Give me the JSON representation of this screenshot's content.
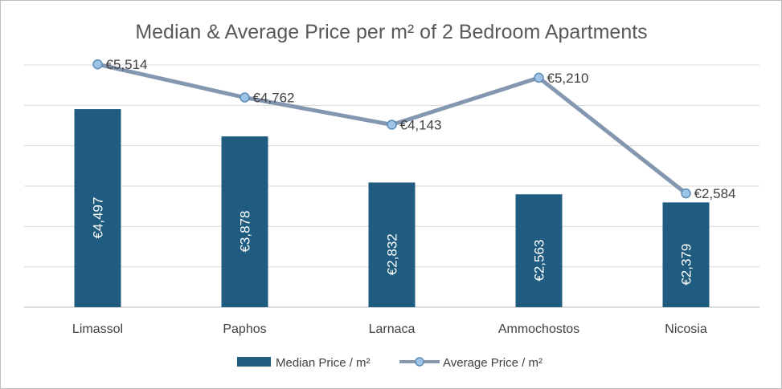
{
  "chart_data": {
    "type": "bar",
    "title": "Median & Average Price per m² of 2 Bedroom Apartments",
    "categories": [
      "Limassol",
      "Paphos",
      "Larnaca",
      "Ammochostos",
      "Nicosia"
    ],
    "ylim": [
      0,
      5500
    ],
    "grid": true,
    "legend_position": "bottom",
    "series": [
      {
        "name": "Median Price / m²",
        "kind": "bar",
        "color": "#1f5c80",
        "values": [
          4497,
          3878,
          2832,
          2563,
          2379
        ],
        "labels": [
          "€4,497",
          "€3,878",
          "€2,832",
          "€2,563",
          "€2,379"
        ]
      },
      {
        "name": "Average Price / m²",
        "kind": "line",
        "color": "#8497b0",
        "marker_color": "#9dc3e6",
        "values": [
          5514,
          4762,
          4143,
          5210,
          2584
        ],
        "labels": [
          "€5,514",
          "€4,762",
          "€4,143",
          "€5,210",
          "€2,584"
        ]
      }
    ]
  }
}
